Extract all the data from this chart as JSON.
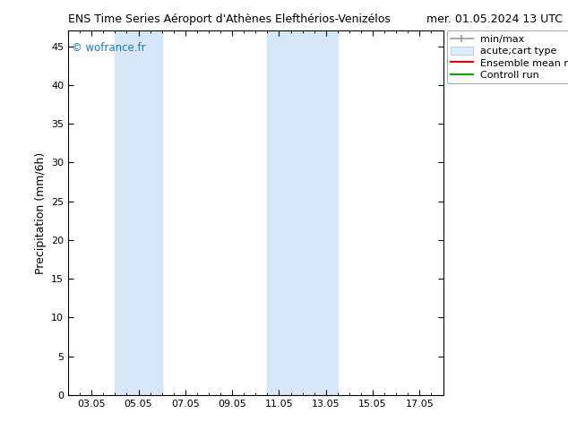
{
  "title_left": "ENS Time Series Aéroport d'Athènes Elefthérios-Venizélos",
  "title_right": "mer. 01.05.2024 13 UTC",
  "ylabel": "Precipitation (mm/6h)",
  "watermark": "© wofrance.fr",
  "watermark_color": "#1a7abf",
  "xlim_start": 2.0,
  "xlim_end": 18.0,
  "ylim_bottom": 0,
  "ylim_top": 47,
  "xtick_labels": [
    "03.05",
    "05.05",
    "07.05",
    "09.05",
    "11.05",
    "13.05",
    "15.05",
    "17.05"
  ],
  "xtick_positions": [
    3,
    5,
    7,
    9,
    11,
    13,
    15,
    17
  ],
  "ytick_values": [
    0,
    5,
    10,
    15,
    20,
    25,
    30,
    35,
    40,
    45
  ],
  "shaded_bands": [
    {
      "x_start": 4.0,
      "x_end": 6.0,
      "color": "#d6e8f7"
    },
    {
      "x_start": 10.5,
      "x_end": 13.5,
      "color": "#d6e8f7"
    }
  ],
  "bg_color": "#ffffff",
  "plot_bg_color": "#ffffff",
  "legend_labels": [
    "min/max",
    "acute;cart type",
    "Ensemble mean run",
    "Controll run"
  ],
  "minmax_color": "#999999",
  "acutecart_facecolor": "#ddeeff",
  "acutecart_edgecolor": "#aabbcc",
  "ensemble_color": "#ff0000",
  "control_color": "#00aa00",
  "title_fontsize": 9,
  "tick_fontsize": 8,
  "ylabel_fontsize": 9,
  "legend_fontsize": 8
}
